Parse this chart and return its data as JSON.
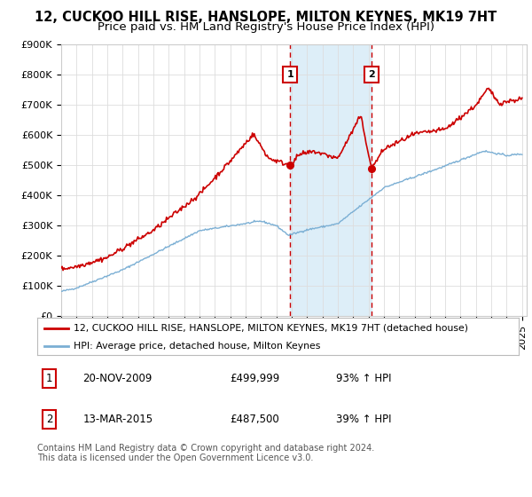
{
  "title": "12, CUCKOO HILL RISE, HANSLOPE, MILTON KEYNES, MK19 7HT",
  "subtitle": "Price paid vs. HM Land Registry's House Price Index (HPI)",
  "ylim": [
    0,
    900000
  ],
  "yticks": [
    0,
    100000,
    200000,
    300000,
    400000,
    500000,
    600000,
    700000,
    800000,
    900000
  ],
  "ytick_labels": [
    "£0",
    "£100K",
    "£200K",
    "£300K",
    "£400K",
    "£500K",
    "£600K",
    "£700K",
    "£800K",
    "£900K"
  ],
  "red_line_color": "#cc0000",
  "blue_line_color": "#7bafd4",
  "shaded_color": "#ddeef8",
  "marker1_date": 2009.9,
  "marker1_value": 499999,
  "marker2_date": 2015.2,
  "marker2_value": 487500,
  "legend_label_red": "12, CUCKOO HILL RISE, HANSLOPE, MILTON KEYNES, MK19 7HT (detached house)",
  "legend_label_blue": "HPI: Average price, detached house, Milton Keynes",
  "footnote": "Contains HM Land Registry data © Crown copyright and database right 2024.\nThis data is licensed under the Open Government Licence v3.0.",
  "title_fontsize": 10.5,
  "subtitle_fontsize": 9.5,
  "tick_fontsize": 8,
  "background_color": "#ffffff"
}
